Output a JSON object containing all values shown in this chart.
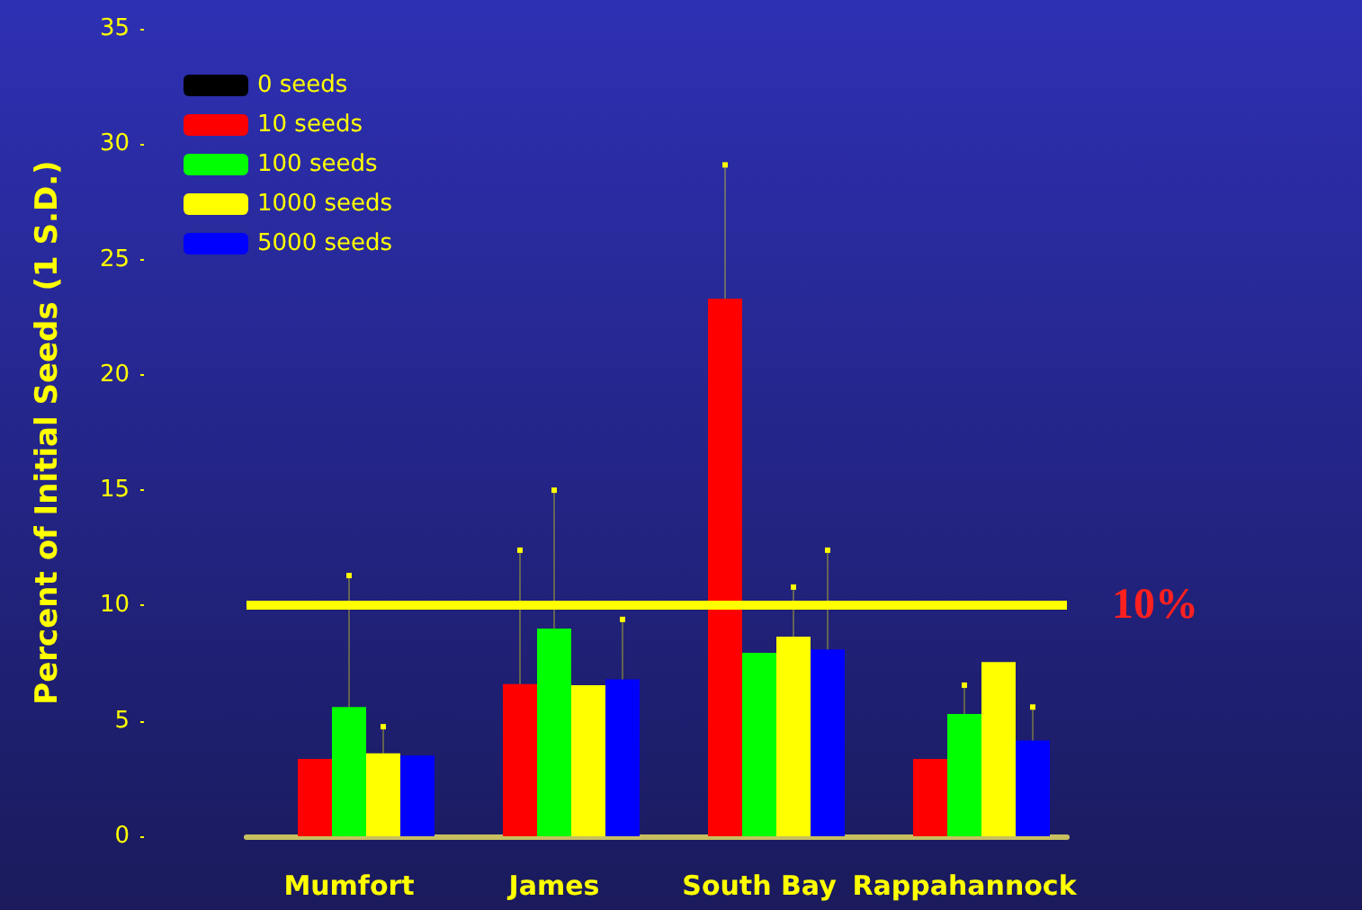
{
  "chart_data": {
    "type": "bar",
    "ylabel": "Percent of Initial Seeds (1 S.D.)",
    "categories": [
      "Mumfort",
      "James",
      "South Bay",
      "Rappahannock"
    ],
    "series": [
      {
        "name": "0 seeds",
        "color": "#000000",
        "values": [
          null,
          null,
          null,
          null
        ]
      },
      {
        "name": "10 seeds",
        "color": "#ff0000",
        "values": [
          3.35,
          6.6,
          23.3,
          3.35
        ],
        "errors": [
          null,
          [
            6.6,
            12.4
          ],
          [
            23.3,
            29.1
          ],
          null
        ]
      },
      {
        "name": "100 seeds",
        "color": "#00ff00",
        "values": [
          5.6,
          9.0,
          7.95,
          5.3
        ],
        "errors": [
          [
            5.6,
            11.3
          ],
          [
            9.0,
            15.0
          ],
          null,
          [
            5.3,
            6.55
          ]
        ]
      },
      {
        "name": "1000 seeds",
        "color": "#ffff00",
        "values": [
          3.6,
          6.55,
          8.65,
          7.55
        ],
        "errors": [
          [
            3.6,
            4.75
          ],
          null,
          [
            8.65,
            10.8
          ],
          null
        ]
      },
      {
        "name": "5000 seeds",
        "color": "#0000ff",
        "values": [
          3.5,
          6.8,
          8.1,
          4.15
        ],
        "errors": [
          null,
          [
            6.8,
            9.4
          ],
          [
            8.1,
            12.4
          ],
          [
            4.15,
            5.6
          ]
        ]
      }
    ],
    "ylim": [
      0,
      35
    ],
    "yticks": [
      0,
      5,
      10,
      15,
      20,
      25,
      30,
      35
    ],
    "grid": false,
    "legend": "top left",
    "ref_lines": [
      {
        "axis": "y",
        "value": 10,
        "label": "10%",
        "color": "#ffff00"
      }
    ]
  }
}
